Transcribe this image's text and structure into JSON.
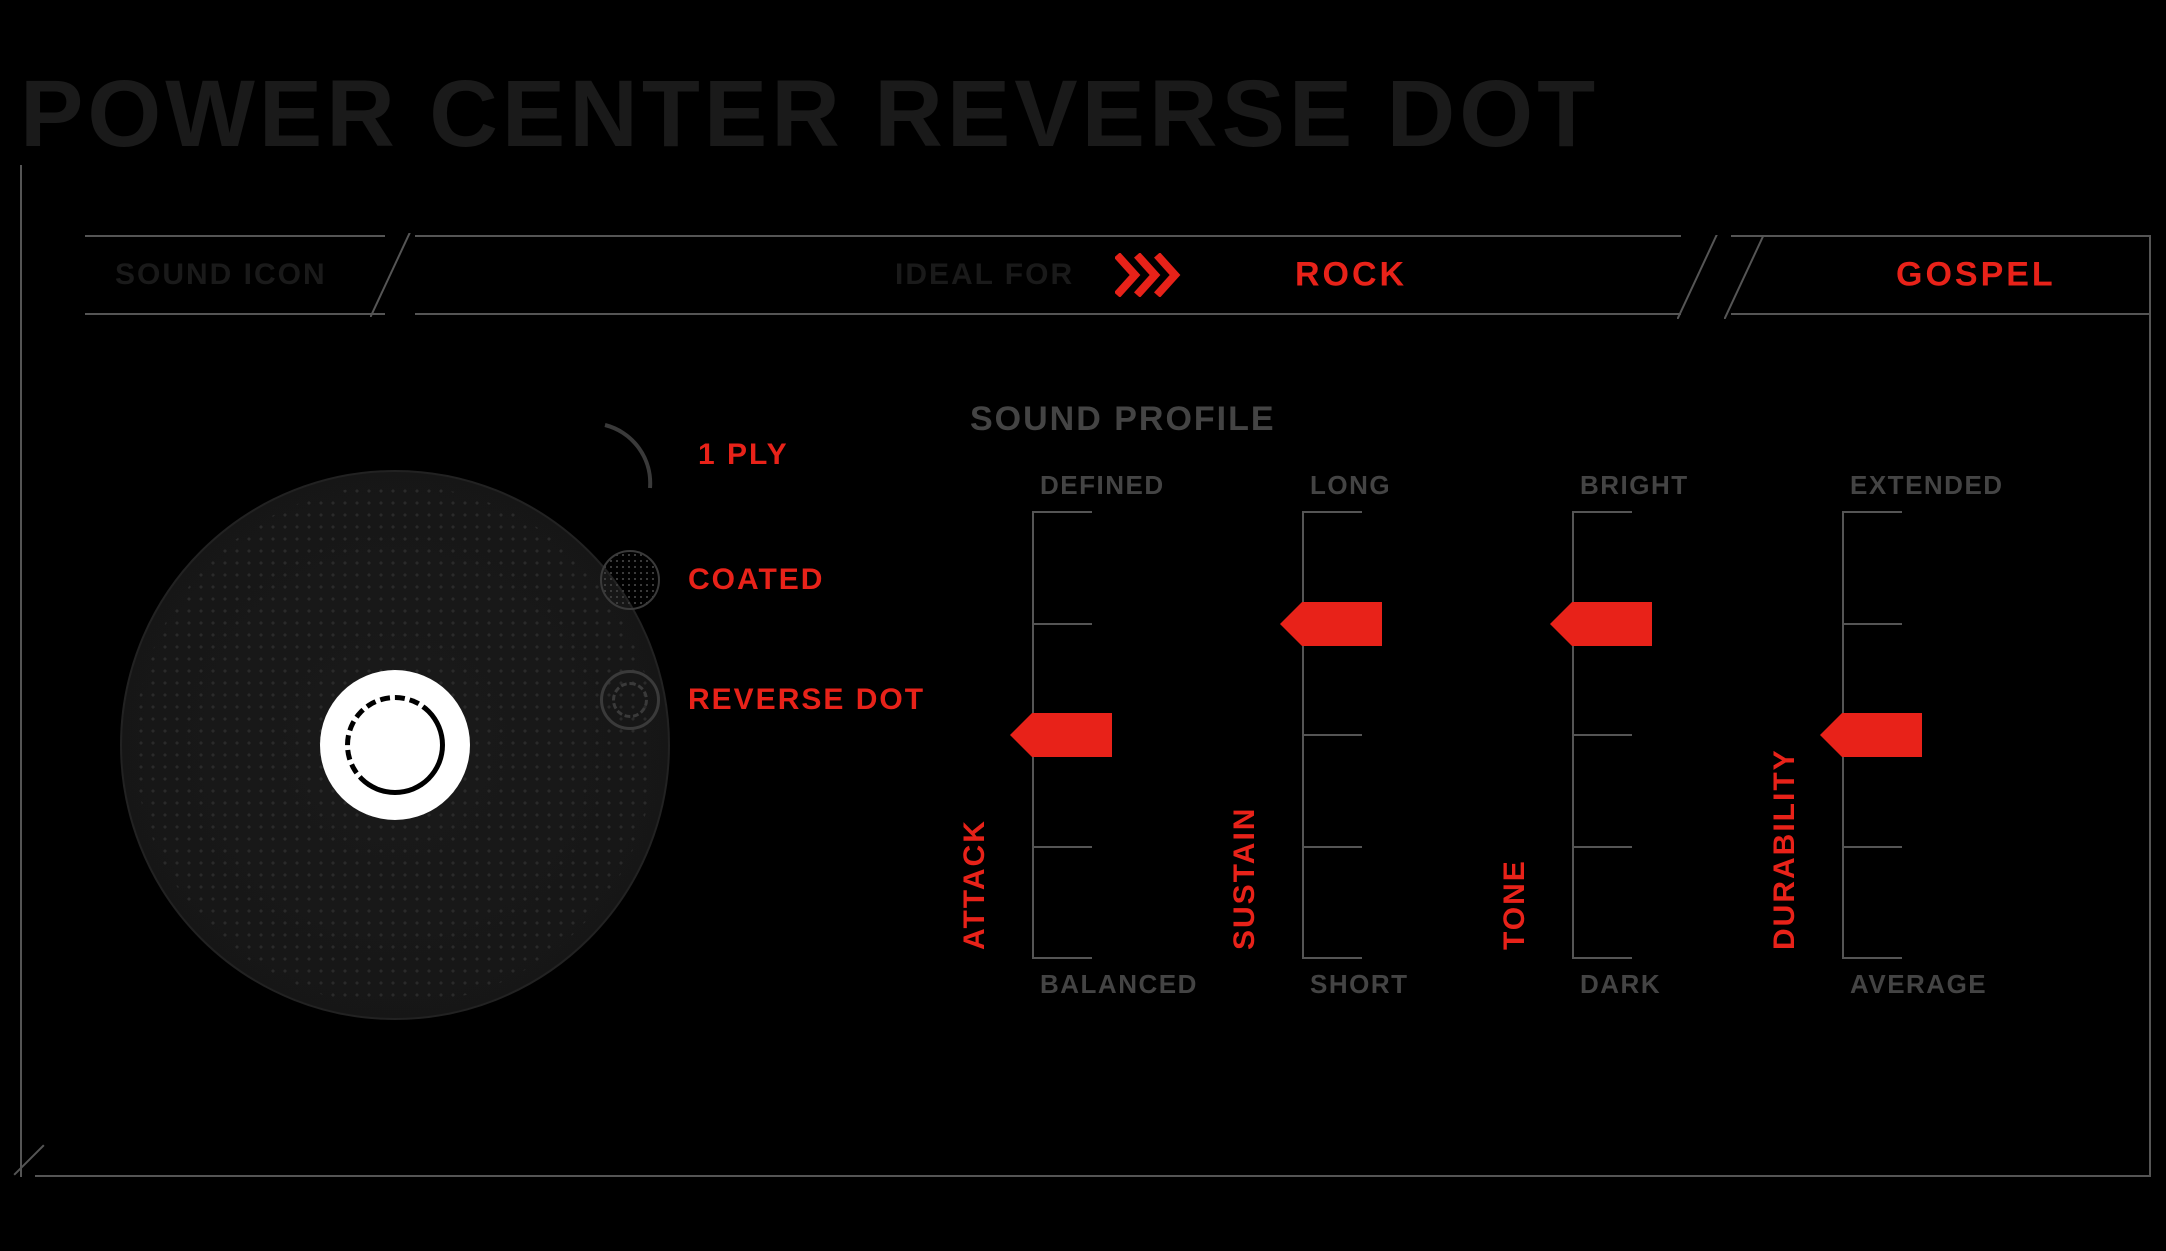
{
  "title": "POWER CENTER REVERSE DOT",
  "header": {
    "sound_icon_label": "SOUND ICON",
    "ideal_label": "IDEAL FOR",
    "genres": [
      "ROCK",
      "GOSPEL"
    ]
  },
  "legend": {
    "items": [
      {
        "key": "ply",
        "label": "1 PLY"
      },
      {
        "key": "coated",
        "label": "COATED"
      },
      {
        "key": "revdot",
        "label": "REVERSE DOT"
      }
    ]
  },
  "sound_profile": {
    "title": "SOUND PROFILE",
    "accent_color": "#e82219",
    "track_color": "#555555",
    "label_color": "#444444",
    "tick_levels": 5,
    "gauges": [
      {
        "name": "ATTACK",
        "top": "DEFINED",
        "bottom": "BALANCED",
        "value": 3
      },
      {
        "name": "SUSTAIN",
        "top": "LONG",
        "bottom": "SHORT",
        "value": 4
      },
      {
        "name": "TONE",
        "top": "BRIGHT",
        "bottom": "DARK",
        "value": 4
      },
      {
        "name": "DURABILITY",
        "top": "EXTENDED",
        "bottom": "AVERAGE",
        "value": 3
      }
    ]
  }
}
